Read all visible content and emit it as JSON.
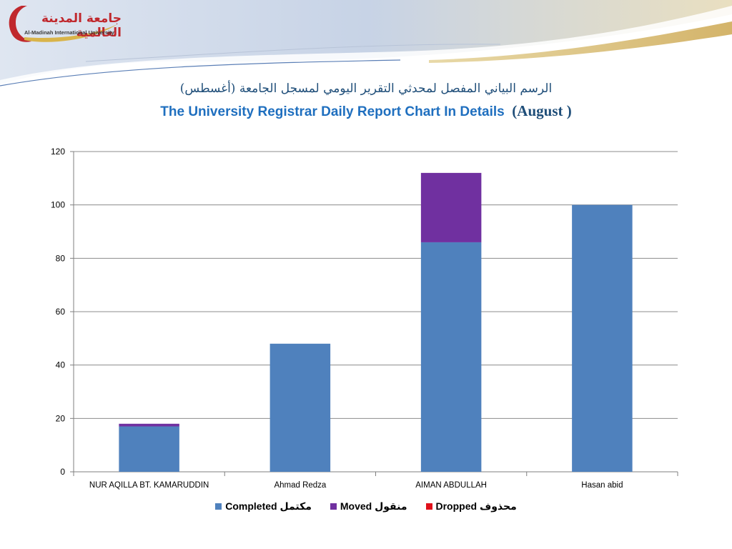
{
  "logo": {
    "name_ar": "جامعة المدينة العالمية",
    "name_en": "Al-Madinah International University"
  },
  "titles": {
    "arabic": "الرسم البياني المفصل لمحدثي التقرير اليومي لمسجل الجامعة (أغسطس)",
    "english_main": "The University Registrar Daily Report Chart In Details",
    "english_month": "(August )"
  },
  "colors": {
    "completed": "#4f81bd",
    "moved": "#7030a0",
    "dropped": "#e0101a",
    "gridline": "#8c8c8c",
    "title_blue": "#1f6fbf"
  },
  "chart_data": {
    "type": "bar",
    "stacked": true,
    "categories": [
      "NUR AQILLA BT. KAMARUDDIN",
      "Ahmad Redza",
      "AIMAN ABDULLAH",
      "Hasan abid"
    ],
    "series": [
      {
        "name": "Completed مكتمل",
        "values": [
          17,
          48,
          86,
          100
        ]
      },
      {
        "name": "Moved  منقول",
        "values": [
          1,
          0,
          26,
          0
        ]
      },
      {
        "name": "Dropped  محذوف",
        "values": [
          0,
          0,
          0,
          0
        ]
      }
    ],
    "yticks": [
      0,
      20,
      40,
      60,
      80,
      100,
      120
    ],
    "ylim": [
      0,
      120
    ],
    "grid": true,
    "legend_position": "bottom"
  }
}
